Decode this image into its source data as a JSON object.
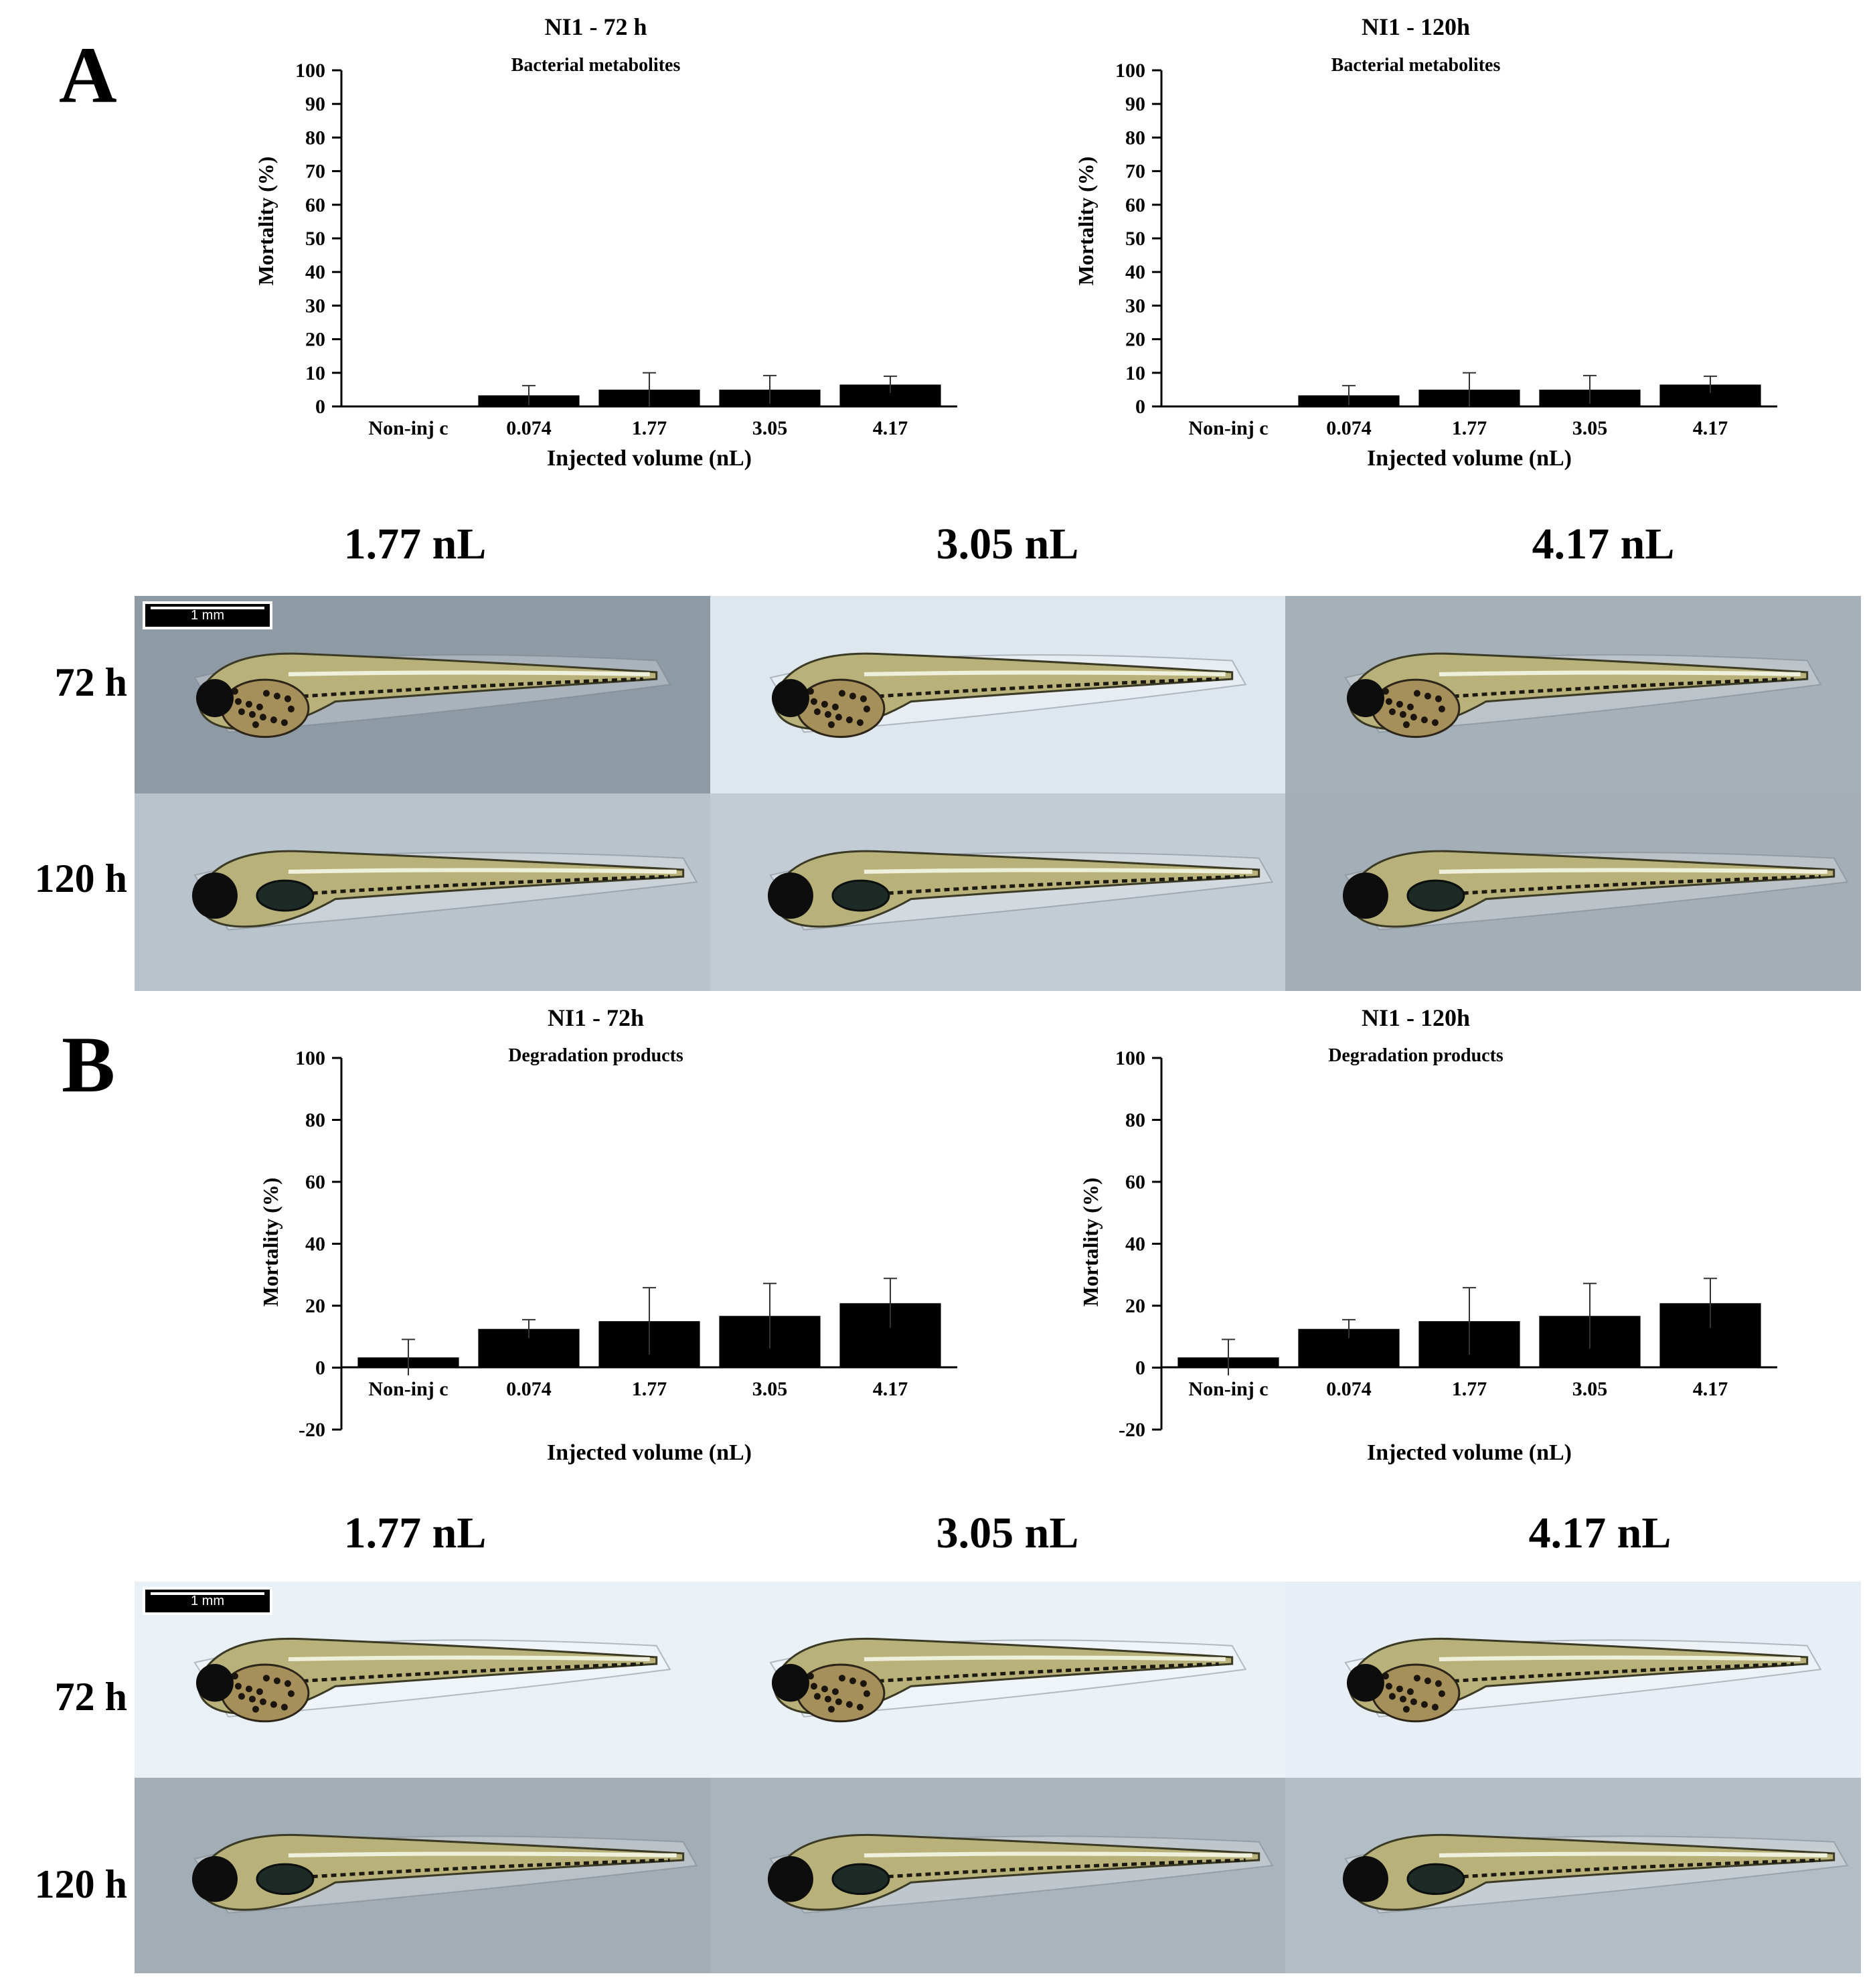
{
  "panels": {
    "A": {
      "letter": "A"
    },
    "B": {
      "letter": "B"
    }
  },
  "chart_data": [
    {
      "id": "A-72",
      "type": "bar",
      "title": "NI1 - 72 h",
      "subtitle": "Bacterial metabolites",
      "xlabel": "Injected volume (nL)",
      "ylabel": "Mortality (%)",
      "categories": [
        "Non-inj c",
        "0.074",
        "1.77",
        "3.05",
        "4.17"
      ],
      "values": [
        0,
        3.3,
        5,
        5,
        6.5
      ],
      "errors": [
        0,
        2.9,
        5,
        4.2,
        2.5
      ],
      "ylim": [
        0,
        100
      ],
      "yticks": [
        0,
        10,
        20,
        30,
        40,
        50,
        60,
        70,
        80,
        90,
        100
      ],
      "grid": false,
      "bar_color": "#000000"
    },
    {
      "id": "A-120",
      "type": "bar",
      "title": "NI1 - 120h",
      "subtitle": "Bacterial metabolites",
      "xlabel": "Injected volume (nL)",
      "ylabel": "Mortality (%)",
      "categories": [
        "Non-inj c",
        "0.074",
        "1.77",
        "3.05",
        "4.17"
      ],
      "values": [
        0,
        3.3,
        5,
        5,
        6.5
      ],
      "errors": [
        0,
        2.9,
        5,
        4.2,
        2.5
      ],
      "ylim": [
        0,
        100
      ],
      "yticks": [
        0,
        10,
        20,
        30,
        40,
        50,
        60,
        70,
        80,
        90,
        100
      ],
      "grid": false,
      "bar_color": "#000000"
    },
    {
      "id": "B-72",
      "type": "bar",
      "title": "NI1 - 72h",
      "subtitle": "Degradation products",
      "xlabel": "Injected volume (nL)",
      "ylabel": "Mortality (%)",
      "categories": [
        "Non-inj c",
        "0.074",
        "1.77",
        "3.05",
        "4.17"
      ],
      "values": [
        3.3,
        12.5,
        15,
        16.7,
        20.8
      ],
      "errors": [
        5.8,
        3,
        10.8,
        10.5,
        8
      ],
      "ylim": [
        -20,
        100
      ],
      "yticks": [
        -20,
        0,
        20,
        40,
        60,
        80,
        100
      ],
      "grid": false,
      "bar_color": "#000000"
    },
    {
      "id": "B-120",
      "type": "bar",
      "title": "NI1 - 120h",
      "subtitle": "Degradation products",
      "xlabel": "Injected volume (nL)",
      "ylabel": "Mortality (%)",
      "categories": [
        "Non-inj c",
        "0.074",
        "1.77",
        "3.05",
        "4.17"
      ],
      "values": [
        3.3,
        12.5,
        15,
        16.7,
        20.8
      ],
      "errors": [
        5.8,
        3,
        10.8,
        10.5,
        8
      ],
      "ylim": [
        -20,
        100
      ],
      "yticks": [
        -20,
        0,
        20,
        40,
        60,
        80,
        100
      ],
      "grid": false,
      "bar_color": "#000000"
    }
  ],
  "image_grids": {
    "A": {
      "doses": [
        "1.77 nL",
        "3.05 nL",
        "4.17 nL"
      ],
      "times": [
        "72 h",
        "120 h"
      ],
      "scale_bar": "1 mm",
      "backgrounds": [
        [
          "#8e9aa4",
          "#dfe7ee",
          "#a6b0b8"
        ],
        [
          "#b9c3cb",
          "#c3ccd4",
          "#a4aeb6"
        ]
      ]
    },
    "B": {
      "doses": [
        "1.77 nL",
        "3.05 nL",
        "4.17 nL"
      ],
      "times": [
        "72 h",
        "120 h"
      ],
      "scale_bar": "1 mm",
      "backgrounds": [
        [
          "#e9f0f6",
          "#eaf1f7",
          "#e7eef5"
        ],
        [
          "#a3adb5",
          "#aab4bc",
          "#b3bdc5"
        ]
      ]
    }
  }
}
